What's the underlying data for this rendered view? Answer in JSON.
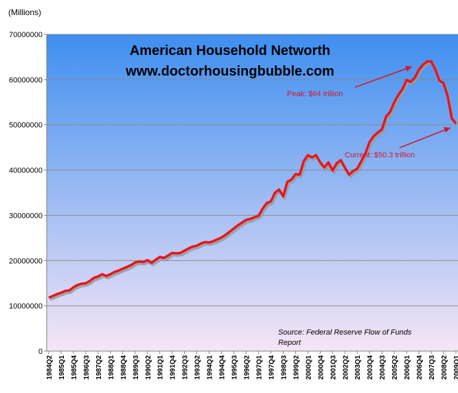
{
  "chart_data": {
    "type": "line",
    "title": "American Household Networth",
    "subtitle": "www.doctorhousingbubble.com",
    "unit_label": "(Millions)",
    "ylim": [
      0,
      70000000
    ],
    "yticks": [
      "0",
      "10000000",
      "20000000",
      "30000000",
      "40000000",
      "50000000",
      "60000000",
      "70000000"
    ],
    "grid": "horizontal",
    "xtick_labels": [
      "1984Q2",
      "1985Q1",
      "1985Q4",
      "1986Q3",
      "1987Q2",
      "1988Q1",
      "1988Q4",
      "1989Q3",
      "1990Q2",
      "1991Q1",
      "1991Q4",
      "1992Q3",
      "1993Q2",
      "1994Q1",
      "1994Q4",
      "1995Q3",
      "1996Q2",
      "1997Q1",
      "1997Q4",
      "1998Q3",
      "1999Q2",
      "2000Q1",
      "2000Q4",
      "2001Q3",
      "2002Q2",
      "2003Q1",
      "2003Q4",
      "2004Q3",
      "2005Q2",
      "2006Q1",
      "2006Q4",
      "2007Q3",
      "2008Q2",
      "2009Q1"
    ],
    "series": [
      {
        "name": "",
        "color": "#e8141c",
        "values": [
          11800000,
          12200000,
          12600000,
          12900000,
          13300000,
          13400000,
          14100000,
          14600000,
          14900000,
          15000000,
          15500000,
          16200000,
          16500000,
          17000000,
          16600000,
          17000000,
          17500000,
          17800000,
          18200000,
          18600000,
          19000000,
          19600000,
          19800000,
          19700000,
          20100000,
          19500000,
          20200000,
          20800000,
          20600000,
          21100000,
          21700000,
          21600000,
          21700000,
          22200000,
          22700000,
          23100000,
          23300000,
          23800000,
          24100000,
          24000000,
          24300000,
          24700000,
          25100000,
          25700000,
          26400000,
          27100000,
          27800000,
          28400000,
          29000000,
          29200000,
          29600000,
          29900000,
          31500000,
          32700000,
          33100000,
          35000000,
          35700000,
          34200000,
          37400000,
          37900000,
          39100000,
          39000000,
          42000000,
          43300000,
          42800000,
          43300000,
          41700000,
          40600000,
          41700000,
          39900000,
          41500000,
          42200000,
          40500000,
          39000000,
          39800000,
          40300000,
          42000000,
          43700000,
          46200000,
          47500000,
          48300000,
          49000000,
          51800000,
          52900000,
          55000000,
          56600000,
          57900000,
          59900000,
          59500000,
          60400000,
          62200000,
          63300000,
          64000000,
          64000000,
          62200000,
          59800000,
          59200000,
          56300000,
          51400000,
          50300000
        ],
        "unit": "millions"
      }
    ],
    "annotations": [
      {
        "id": "peak",
        "text": "Peak:  $64 trillion"
      },
      {
        "id": "current",
        "text": "Current:  $50.3 trillion"
      }
    ],
    "source_lines": [
      "Source:  Federal  Reserve  Flow of Funds",
      "Report"
    ],
    "background": {
      "top": "#3e8ef0",
      "bottom": "#f6e6f6"
    }
  }
}
